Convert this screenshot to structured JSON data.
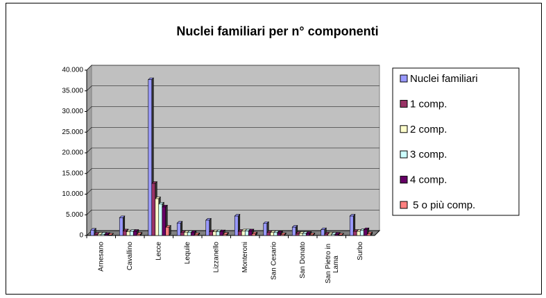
{
  "chart_data": {
    "type": "bar",
    "title": "Nuclei familiari per n° componenti",
    "categories": [
      "Arnesano",
      "Cavallino",
      "Lecce",
      "Lequile",
      "Lizzanello",
      "Monteroni",
      "San Cesario",
      "San Donato",
      "San Pietro in Lama",
      "Surbo"
    ],
    "series": [
      {
        "name": "Nuclei familiari",
        "color": "#9999ff",
        "values": [
          1300,
          4300,
          37700,
          3000,
          3700,
          4700,
          2900,
          2000,
          1400,
          4700
        ]
      },
      {
        "name": "1 comp.",
        "color": "#993366",
        "values": [
          300,
          1100,
          12600,
          700,
          900,
          1000,
          700,
          500,
          350,
          1000
        ]
      },
      {
        "name": "2 comp.",
        "color": "#ffffcc",
        "values": [
          300,
          900,
          8900,
          700,
          900,
          1100,
          700,
          500,
          350,
          1000
        ]
      },
      {
        "name": "3 comp.",
        "color": "#ccffff",
        "values": [
          300,
          1000,
          7600,
          700,
          900,
          1100,
          700,
          500,
          300,
          1200
        ]
      },
      {
        "name": "4 comp.",
        "color": "#660066",
        "values": [
          250,
          1000,
          6900,
          700,
          900,
          1100,
          600,
          500,
          300,
          1400
        ]
      },
      {
        "name": " 5 o più comp.",
        "color": "#ff8080",
        "values": [
          100,
          300,
          2000,
          200,
          300,
          400,
          200,
          150,
          100,
          400
        ]
      }
    ],
    "ylim": [
      0,
      40000
    ],
    "yticks": [
      0,
      {
        "value": 5000,
        "label": "5.000"
      },
      {
        "value": 10000,
        "label": "10.000"
      },
      {
        "value": 15000,
        "label": "15.000"
      },
      {
        "value": 20000,
        "label": "20.000"
      },
      {
        "value": 25000,
        "label": "25.000"
      },
      {
        "value": 30000,
        "label": "30.000"
      },
      {
        "value": 35000,
        "label": "35.000"
      },
      {
        "value": 40000,
        "label": "40.000"
      }
    ],
    "grid": true,
    "wall_color": "#c0c0c0",
    "legend": "right"
  }
}
